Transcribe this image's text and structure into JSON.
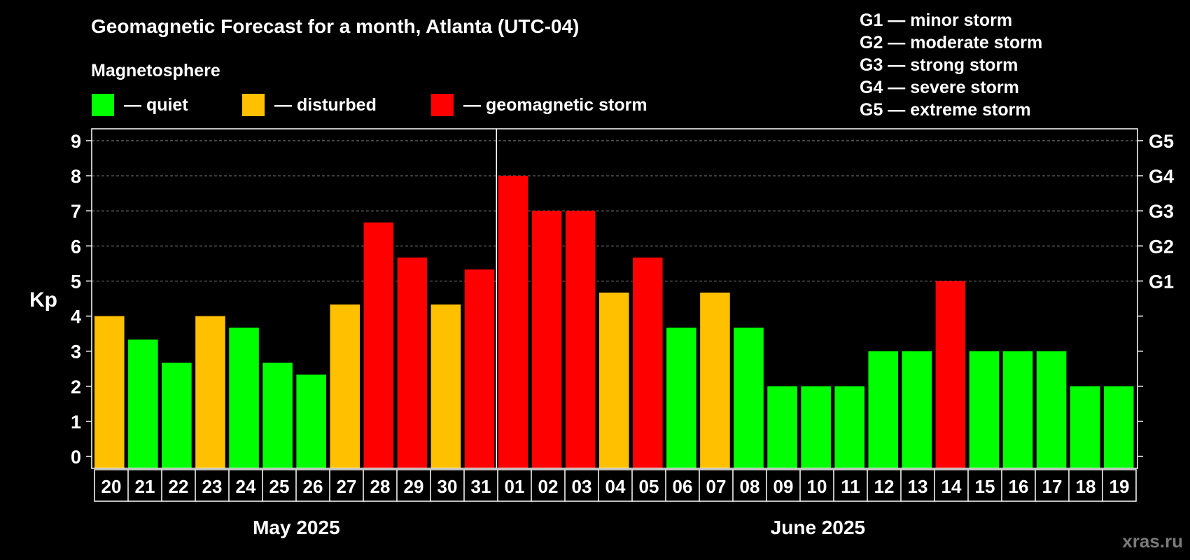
{
  "chart_data": {
    "type": "bar",
    "title": "Geomagnetic Forecast for a month, Atlanta (UTC-04)",
    "legend_title": "Magnetosphere",
    "legend": [
      {
        "name": "— quiet",
        "color": "#00ff00"
      },
      {
        "name": "— disturbed",
        "color": "#ffc000"
      },
      {
        "name": "— geomagnetic storm",
        "color": "#ff0000"
      }
    ],
    "g_legend": [
      "G1 — minor storm",
      "G2 — moderate storm",
      "G3 — strong storm",
      "G4 — severe storm",
      "G5 — extreme storm"
    ],
    "ylabel": "Kp",
    "ylim": [
      0,
      9
    ],
    "yticks": [
      "0",
      "1",
      "2",
      "3",
      "4",
      "5",
      "6",
      "7",
      "8",
      "9"
    ],
    "right_ticks": [
      {
        "value": 5,
        "label": "G1"
      },
      {
        "value": 6,
        "label": "G2"
      },
      {
        "value": 7,
        "label": "G3"
      },
      {
        "value": 8,
        "label": "G4"
      },
      {
        "value": 9,
        "label": "G5"
      }
    ],
    "grid_lines": [
      5,
      6,
      7,
      8,
      9
    ],
    "months": [
      "May 2025",
      "June 2025"
    ],
    "categories": [
      "20",
      "21",
      "22",
      "23",
      "24",
      "25",
      "26",
      "27",
      "28",
      "29",
      "30",
      "31",
      "01",
      "02",
      "03",
      "04",
      "05",
      "06",
      "07",
      "08",
      "09",
      "10",
      "11",
      "12",
      "13",
      "14",
      "15",
      "16",
      "17",
      "18",
      "19"
    ],
    "values": [
      4,
      3.33,
      2.67,
      4,
      3.67,
      2.67,
      2.33,
      4.33,
      6.67,
      5.67,
      4.33,
      5.33,
      8,
      7,
      7,
      4.67,
      5.67,
      3.67,
      4.67,
      3.67,
      2,
      2,
      2,
      3,
      3,
      5,
      3,
      3,
      3,
      2,
      2
    ],
    "level": [
      "disturbed",
      "quiet",
      "quiet",
      "disturbed",
      "quiet",
      "quiet",
      "quiet",
      "disturbed",
      "storm",
      "storm",
      "disturbed",
      "storm",
      "storm",
      "storm",
      "storm",
      "disturbed",
      "storm",
      "quiet",
      "disturbed",
      "quiet",
      "quiet",
      "quiet",
      "quiet",
      "quiet",
      "quiet",
      "storm",
      "quiet",
      "quiet",
      "quiet",
      "quiet",
      "quiet"
    ],
    "colors": {
      "quiet": "#00ff00",
      "disturbed": "#ffc000",
      "storm": "#ff0000"
    }
  },
  "watermark": "xras.ru"
}
